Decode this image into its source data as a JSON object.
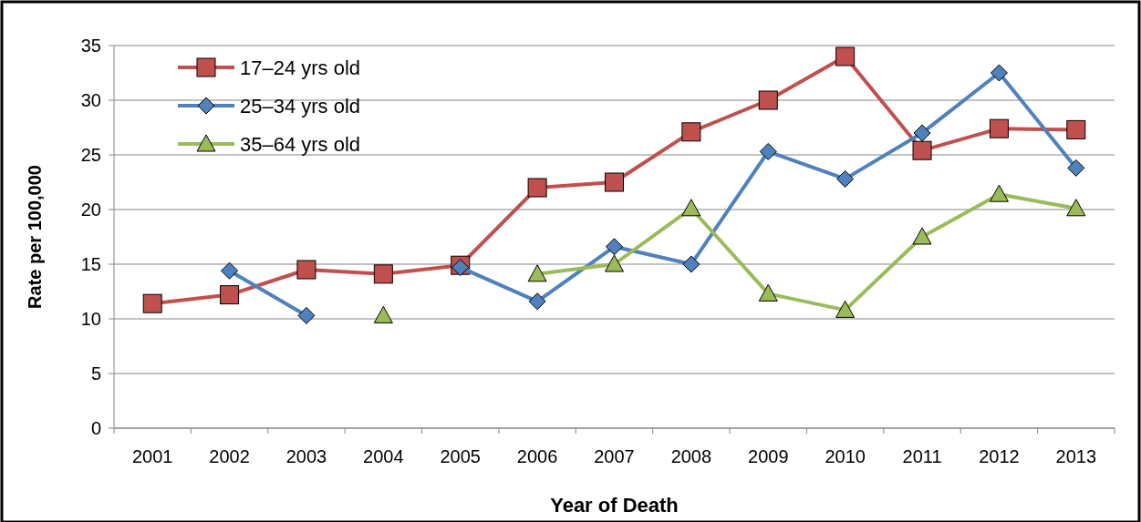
{
  "chart_data": {
    "type": "line",
    "xlabel": "Year of Death",
    "ylabel": "Rate per 100,000",
    "categories": [
      "2001",
      "2002",
      "2003",
      "2004",
      "2005",
      "2006",
      "2007",
      "2008",
      "2009",
      "2010",
      "2011",
      "2012",
      "2013"
    ],
    "series": [
      {
        "name": "17–24 yrs old",
        "color": "#c0504d",
        "marker": "square",
        "values": [
          11.4,
          12.2,
          14.5,
          14.1,
          14.9,
          22.0,
          22.5,
          27.1,
          30.0,
          34.0,
          25.4,
          27.4,
          27.3
        ]
      },
      {
        "name": "25–34 yrs old",
        "color": "#4f81bd",
        "marker": "diamond",
        "values": [
          null,
          14.4,
          10.3,
          null,
          14.7,
          11.6,
          16.6,
          15.0,
          25.3,
          22.8,
          27.0,
          32.5,
          23.8
        ]
      },
      {
        "name": "35–64 yrs old",
        "color": "#9bbb59",
        "marker": "triangle",
        "values": [
          null,
          null,
          null,
          10.3,
          null,
          14.1,
          15.0,
          20.1,
          12.3,
          10.8,
          17.5,
          21.4,
          20.1
        ]
      }
    ],
    "ylim": [
      0,
      35
    ],
    "yticks": [
      0,
      5,
      10,
      15,
      20,
      25,
      30,
      35
    ],
    "grid": "y",
    "legend": "top left",
    "line_style": "solid"
  }
}
